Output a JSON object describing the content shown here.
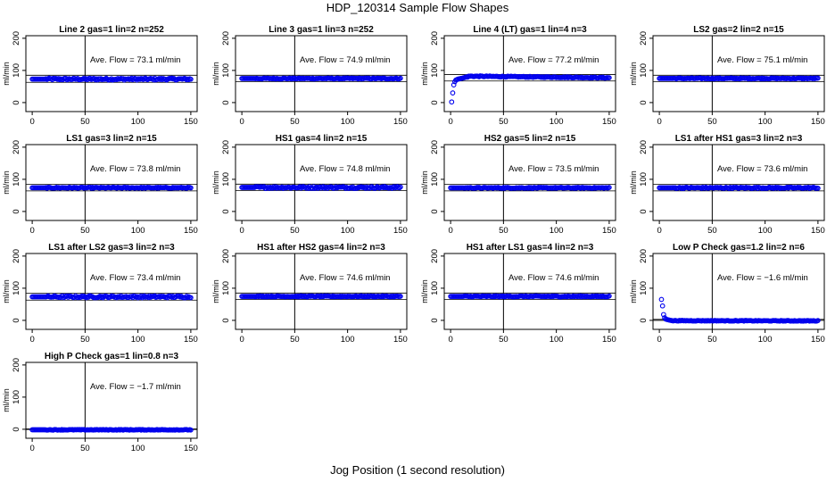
{
  "title": "HDP_120314  Sample Flow Shapes",
  "xlabel": "Jog Position (1 second resolution)",
  "style": {
    "point_color": "#0000ee",
    "line_color": "#000000"
  },
  "chart_data": [
    {
      "type": "scatter",
      "title": "Line 2 gas=1 lin=2 n=252",
      "ylabel": "ml/min",
      "annotation": "Ave. Flow =  73.1  ml/min",
      "mean": 73.1,
      "vline": 50,
      "xlim": [
        0,
        150
      ],
      "ylim": [
        0,
        200
      ],
      "xticks": [
        "0",
        "50",
        "100",
        "150"
      ],
      "yticks": [
        "0",
        "100",
        "200"
      ],
      "ref_lines": [
        63,
        85
      ],
      "points": [
        [
          0,
          73.1
        ],
        [
          150,
          73.1
        ]
      ],
      "noise": 3.0
    },
    {
      "type": "scatter",
      "title": "Line 3 gas=1 lin=3 n=252",
      "ylabel": "ml/min",
      "annotation": "Ave. Flow =  74.9  ml/min",
      "mean": 74.9,
      "vline": 50,
      "xlim": [
        0,
        150
      ],
      "ylim": [
        0,
        200
      ],
      "xticks": [
        "0",
        "50",
        "100",
        "150"
      ],
      "yticks": [
        "0",
        "100",
        "200"
      ],
      "ref_lines": [
        65,
        85
      ],
      "points": [
        [
          0,
          74.9
        ],
        [
          150,
          74.9
        ]
      ],
      "noise": 1.5
    },
    {
      "type": "scatter",
      "title": "Line 4 (LT) gas=1 lin=4 n=3",
      "ylabel": "ml/min",
      "annotation": "Ave. Flow =  77.2  ml/min",
      "mean": 77.2,
      "vline": 50,
      "xlim": [
        0,
        150
      ],
      "ylim": [
        0,
        200
      ],
      "xticks": [
        "0",
        "50",
        "100",
        "150"
      ],
      "yticks": [
        "0",
        "100",
        "200"
      ],
      "ref_lines": [
        67,
        87
      ],
      "points": [
        [
          1,
          2
        ],
        [
          2,
          30
        ],
        [
          3,
          55
        ],
        [
          4,
          65
        ],
        [
          5,
          70
        ],
        [
          7,
          73
        ],
        [
          10,
          75
        ],
        [
          18,
          82
        ],
        [
          150,
          77.2
        ]
      ],
      "noise": 1.5
    },
    {
      "type": "scatter",
      "title": "LS2 gas=2 lin=2 n=15",
      "ylabel": "ml/min",
      "annotation": "Ave. Flow =  75.1  ml/min",
      "mean": 75.1,
      "vline": 50,
      "xlim": [
        0,
        150
      ],
      "ylim": [
        0,
        200
      ],
      "xticks": [
        "0",
        "50",
        "100",
        "150"
      ],
      "yticks": [
        "0",
        "100",
        "200"
      ],
      "ref_lines": [
        65,
        85
      ],
      "points": [
        [
          0,
          75.1
        ],
        [
          150,
          75.1
        ]
      ],
      "noise": 1.5
    },
    {
      "type": "scatter",
      "title": "LS1 gas=3 lin=2 n=15",
      "ylabel": "ml/min",
      "annotation": "Ave. Flow =  73.8  ml/min",
      "mean": 73.8,
      "vline": 50,
      "xlim": [
        0,
        150
      ],
      "ylim": [
        0,
        200
      ],
      "xticks": [
        "0",
        "50",
        "100",
        "150"
      ],
      "yticks": [
        "0",
        "100",
        "200"
      ],
      "ref_lines": [
        64,
        84
      ],
      "points": [
        [
          0,
          73.8
        ],
        [
          150,
          73.8
        ]
      ],
      "noise": 1.5
    },
    {
      "type": "scatter",
      "title": "HS1 gas=4 lin=2 n=15",
      "ylabel": "ml/min",
      "annotation": "Ave. Flow =  74.8  ml/min",
      "mean": 74.8,
      "vline": 50,
      "xlim": [
        0,
        150
      ],
      "ylim": [
        0,
        200
      ],
      "xticks": [
        "0",
        "50",
        "100",
        "150"
      ],
      "yticks": [
        "0",
        "100",
        "200"
      ],
      "ref_lines": [
        65,
        85
      ],
      "points": [
        [
          0,
          74.8
        ],
        [
          150,
          74.8
        ]
      ],
      "noise": 3.0
    },
    {
      "type": "scatter",
      "title": "HS2 gas=5 lin=2 n=15",
      "ylabel": "ml/min",
      "annotation": "Ave. Flow =  73.5  ml/min",
      "mean": 73.5,
      "vline": 50,
      "xlim": [
        0,
        150
      ],
      "ylim": [
        0,
        200
      ],
      "xticks": [
        "0",
        "50",
        "100",
        "150"
      ],
      "yticks": [
        "0",
        "100",
        "200"
      ],
      "ref_lines": [
        64,
        84
      ],
      "points": [
        [
          0,
          73.5
        ],
        [
          150,
          73.5
        ]
      ],
      "noise": 1.5
    },
    {
      "type": "scatter",
      "title": "LS1 after HS1 gas=3 lin=2 n=3",
      "ylabel": "ml/min",
      "annotation": "Ave. Flow =  73.6  ml/min",
      "mean": 73.6,
      "vline": 50,
      "xlim": [
        0,
        150
      ],
      "ylim": [
        0,
        200
      ],
      "xticks": [
        "0",
        "50",
        "100",
        "150"
      ],
      "yticks": [
        "0",
        "100",
        "200"
      ],
      "ref_lines": [
        64,
        84
      ],
      "points": [
        [
          0,
          73.6
        ],
        [
          150,
          73.6
        ]
      ],
      "noise": 2.0
    },
    {
      "type": "scatter",
      "title": "LS1 after LS2 gas=3 lin=2 n=3",
      "ylabel": "ml/min",
      "annotation": "Ave. Flow =  73.4  ml/min",
      "mean": 73.4,
      "vline": 50,
      "xlim": [
        0,
        150
      ],
      "ylim": [
        0,
        200
      ],
      "xticks": [
        "0",
        "50",
        "100",
        "150"
      ],
      "yticks": [
        "0",
        "100",
        "200"
      ],
      "ref_lines": [
        63,
        84
      ],
      "points": [
        [
          0,
          73.4
        ],
        [
          150,
          73.4
        ]
      ],
      "noise": 3.0
    },
    {
      "type": "scatter",
      "title": "HS1 after HS2 gas=4 lin=2 n=3",
      "ylabel": "ml/min",
      "annotation": "Ave. Flow =  74.6  ml/min",
      "mean": 74.6,
      "vline": 50,
      "xlim": [
        0,
        150
      ],
      "ylim": [
        0,
        200
      ],
      "xticks": [
        "0",
        "50",
        "100",
        "150"
      ],
      "yticks": [
        "0",
        "100",
        "200"
      ],
      "ref_lines": [
        65,
        85
      ],
      "points": [
        [
          0,
          74.6
        ],
        [
          150,
          74.6
        ]
      ],
      "noise": 1.5
    },
    {
      "type": "scatter",
      "title": "HS1 after LS1 gas=4 lin=2 n=3",
      "ylabel": "ml/min",
      "annotation": "Ave. Flow =  74.6  ml/min",
      "mean": 74.6,
      "vline": 50,
      "xlim": [
        0,
        150
      ],
      "ylim": [
        0,
        200
      ],
      "xticks": [
        "0",
        "50",
        "100",
        "150"
      ],
      "yticks": [
        "0",
        "100",
        "200"
      ],
      "ref_lines": [
        65,
        85
      ],
      "points": [
        [
          0,
          74.6
        ],
        [
          150,
          74.6
        ]
      ],
      "noise": 1.5
    },
    {
      "type": "scatter",
      "title": "Low P Check gas=1.2 lin=2 n=6",
      "ylabel": "ml/min",
      "annotation": "Ave. Flow =  −1.6  ml/min",
      "mean": -1.6,
      "vline": 50,
      "xlim": [
        0,
        150
      ],
      "ylim": [
        0,
        200
      ],
      "xticks": [
        "0",
        "50",
        "100",
        "150"
      ],
      "yticks": [
        "0",
        "100",
        "200"
      ],
      "ref_lines": [
        0,
        3
      ],
      "points": [
        [
          2,
          65
        ],
        [
          3,
          45
        ],
        [
          4,
          18
        ],
        [
          5,
          8
        ],
        [
          6,
          4
        ],
        [
          8,
          2
        ],
        [
          12,
          -1
        ],
        [
          150,
          -1.6
        ]
      ],
      "noise": 1.0
    },
    {
      "type": "scatter",
      "title": "High P Check gas=1 lin=0.8 n=3",
      "ylabel": "ml/min",
      "annotation": "Ave. Flow =  −1.7  ml/min",
      "mean": -1.7,
      "vline": 50,
      "xlim": [
        0,
        150
      ],
      "ylim": [
        0,
        200
      ],
      "xticks": [
        "0",
        "50",
        "100",
        "150"
      ],
      "yticks": [
        "0",
        "100",
        "200"
      ],
      "ref_lines": [
        -1,
        1
      ],
      "points": [
        [
          0,
          -1.7
        ],
        [
          150,
          -1.7
        ]
      ],
      "noise": 1.0
    }
  ]
}
